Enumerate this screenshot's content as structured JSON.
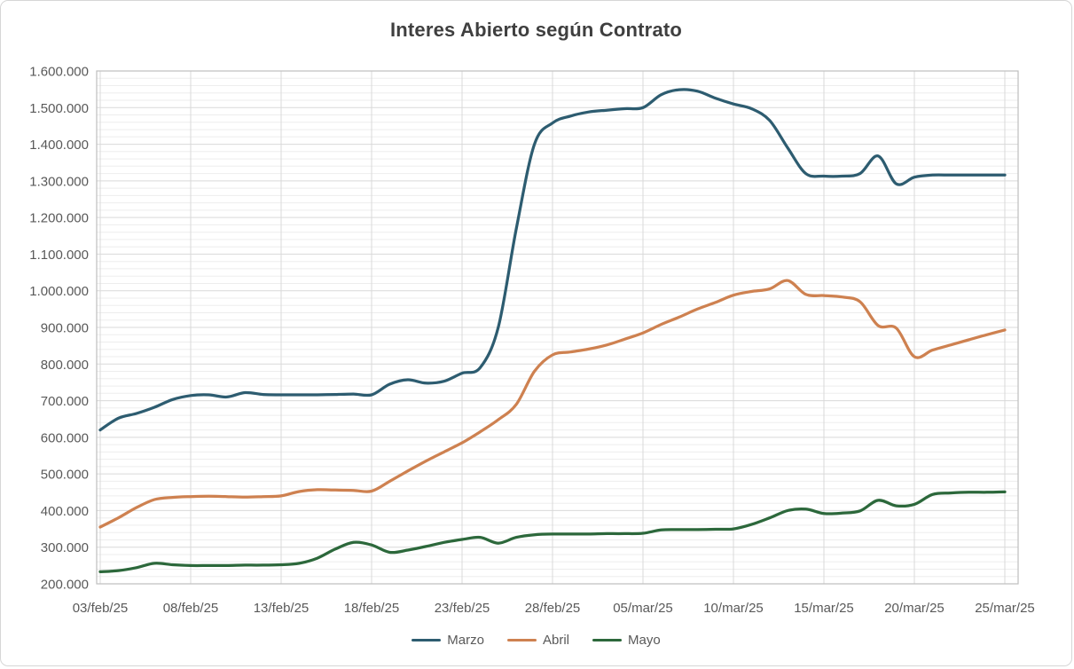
{
  "window": {
    "background": "#ffffff",
    "border_color": "#d6d6d6"
  },
  "chart_data": {
    "type": "line",
    "title": "Interes Abierto según Contrato",
    "legend_position": "bottom-center",
    "grid": {
      "major_color": "#d9d9d9",
      "minor_color": "#ededed",
      "frame_color": "#bfbfbf",
      "minor_on": true
    },
    "text_color": {
      "title": "#3f3f3f",
      "axis": "#595959"
    },
    "x_axis": {
      "tick_labels": [
        "03/feb/25",
        "08/feb/25",
        "13/feb/25",
        "18/feb/25",
        "23/feb/25",
        "28/feb/25",
        "05/mar/25",
        "10/mar/25",
        "15/mar/25",
        "20/mar/25",
        "25/mar/25"
      ],
      "tick_day_index": [
        0,
        5,
        10,
        15,
        20,
        25,
        30,
        35,
        40,
        45,
        50
      ],
      "days_total": 50
    },
    "y_axis": {
      "min": 200000,
      "max": 1600000,
      "major_step": 100000,
      "minor_step": 20000,
      "tick_labels": [
        "200.000",
        "300.000",
        "400.000",
        "500.000",
        "600.000",
        "700.000",
        "800.000",
        "900.000",
        "1.000.000",
        "1.100.000",
        "1.200.000",
        "1.300.000",
        "1.400.000",
        "1.500.000",
        "1.600.000"
      ]
    },
    "series": [
      {
        "name": "Marzo",
        "color": "#2D5C70",
        "values": [
          620000,
          652000,
          665000,
          682000,
          703000,
          714000,
          716000,
          710000,
          722000,
          717000,
          716000,
          716000,
          716000,
          717000,
          718000,
          716000,
          745000,
          757000,
          748000,
          753000,
          775000,
          790000,
          900000,
          1170000,
          1400000,
          1458000,
          1477000,
          1488000,
          1493000,
          1497000,
          1500000,
          1535000,
          1549000,
          1545000,
          1526000,
          1510000,
          1497000,
          1465000,
          1390000,
          1320000,
          1313000,
          1313000,
          1320000,
          1368000,
          1292000,
          1310000,
          1316000,
          1316000,
          1316000,
          1316000,
          1316000
        ]
      },
      {
        "name": "Abril",
        "color": "#CE8150",
        "values": [
          355000,
          380000,
          408000,
          430000,
          436000,
          438000,
          439000,
          438000,
          437000,
          438000,
          440000,
          452000,
          457000,
          456000,
          455000,
          453000,
          480000,
          508000,
          535000,
          560000,
          585000,
          615000,
          648000,
          690000,
          780000,
          825000,
          833000,
          841000,
          852000,
          868000,
          885000,
          908000,
          928000,
          950000,
          968000,
          988000,
          998000,
          1005000,
          1028000,
          990000,
          987000,
          983000,
          970000,
          905000,
          898000,
          820000,
          838000,
          852000,
          866000,
          880000,
          893000
        ]
      },
      {
        "name": "Mayo",
        "color": "#2C683B",
        "values": [
          233000,
          236000,
          244000,
          256000,
          252000,
          250000,
          250000,
          250000,
          251000,
          251000,
          252000,
          256000,
          270000,
          295000,
          313000,
          306000,
          286000,
          292000,
          302000,
          313000,
          321000,
          327000,
          311000,
          327000,
          334000,
          336000,
          336000,
          336000,
          337000,
          337000,
          338000,
          347000,
          348000,
          348000,
          349000,
          350000,
          362000,
          380000,
          400000,
          404000,
          392000,
          393000,
          399000,
          428000,
          413000,
          417000,
          444000,
          448000,
          450000,
          450000,
          451000
        ]
      }
    ]
  }
}
